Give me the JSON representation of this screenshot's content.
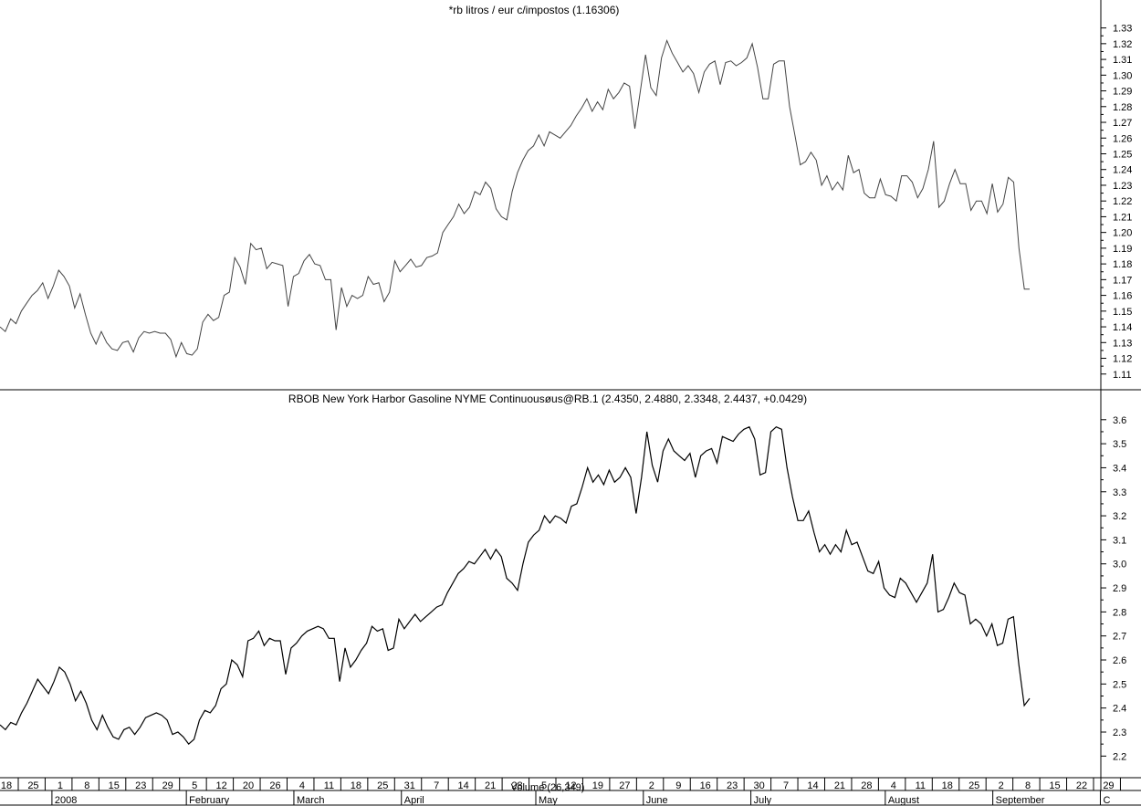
{
  "chart_data": [
    {
      "type": "line",
      "title": "*rb litros / eur c/impostos (1.16306)",
      "xlabel": "",
      "ylabel": "",
      "ylim": [
        1.1,
        1.335
      ],
      "yticks": [
        1.11,
        1.12,
        1.13,
        1.14,
        1.15,
        1.16,
        1.17,
        1.18,
        1.19,
        1.2,
        1.21,
        1.22,
        1.23,
        1.24,
        1.25,
        1.26,
        1.27,
        1.28,
        1.29,
        1.3,
        1.31,
        1.32,
        1.33
      ],
      "ytick_labels": [
        "1.11",
        "1.12",
        "1.13",
        "1.14",
        "1.15",
        "1.16",
        "1.17",
        "1.18",
        "1.19",
        "1.20",
        "1.21",
        "1.22",
        "1.23",
        "1.24",
        "1.25",
        "1.26",
        "1.27",
        "1.28",
        "1.29",
        "1.30",
        "1.31",
        "1.32",
        "1.33"
      ],
      "series": [
        {
          "color": "#444444",
          "values": [
            1.14,
            1.137,
            1.145,
            1.142,
            1.15,
            1.155,
            1.16,
            1.163,
            1.168,
            1.158,
            1.166,
            1.176,
            1.172,
            1.166,
            1.152,
            1.161,
            1.148,
            1.136,
            1.129,
            1.137,
            1.13,
            1.126,
            1.125,
            1.13,
            1.131,
            1.124,
            1.133,
            1.137,
            1.136,
            1.137,
            1.136,
            1.136,
            1.132,
            1.121,
            1.13,
            1.123,
            1.122,
            1.126,
            1.143,
            1.148,
            1.144,
            1.146,
            1.16,
            1.162,
            1.184,
            1.178,
            1.167,
            1.193,
            1.189,
            1.19,
            1.177,
            1.181,
            1.18,
            1.179,
            1.153,
            1.172,
            1.174,
            1.182,
            1.186,
            1.18,
            1.179,
            1.17,
            1.17,
            1.138,
            1.165,
            1.153,
            1.16,
            1.158,
            1.16,
            1.172,
            1.167,
            1.168,
            1.156,
            1.162,
            1.182,
            1.175,
            1.179,
            1.183,
            1.178,
            1.179,
            1.184,
            1.185,
            1.187,
            1.2,
            1.205,
            1.21,
            1.218,
            1.212,
            1.216,
            1.226,
            1.224,
            1.232,
            1.228,
            1.215,
            1.21,
            1.208,
            1.226,
            1.238,
            1.246,
            1.252,
            1.255,
            1.262,
            1.255,
            1.264,
            1.262,
            1.26,
            1.264,
            1.268,
            1.274,
            1.279,
            1.285,
            1.277,
            1.283,
            1.278,
            1.291,
            1.285,
            1.289,
            1.295,
            1.293,
            1.266,
            1.289,
            1.313,
            1.292,
            1.287,
            1.311,
            1.322,
            1.314,
            1.308,
            1.302,
            1.306,
            1.301,
            1.289,
            1.302,
            1.307,
            1.309,
            1.294,
            1.308,
            1.309,
            1.306,
            1.308,
            1.311,
            1.32,
            1.305,
            1.285,
            1.285,
            1.307,
            1.309,
            1.309,
            1.28,
            1.262,
            1.243,
            1.245,
            1.251,
            1.246,
            1.23,
            1.236,
            1.227,
            1.232,
            1.227,
            1.249,
            1.238,
            1.24,
            1.225,
            1.222,
            1.222,
            1.234,
            1.224,
            1.223,
            1.22,
            1.236,
            1.236,
            1.232,
            1.222,
            1.228,
            1.24,
            1.258,
            1.216,
            1.22,
            1.231,
            1.24,
            1.231,
            1.231,
            1.214,
            1.22,
            1.22,
            1.212,
            1.231,
            1.213,
            1.218,
            1.235,
            1.232,
            1.19,
            1.164,
            1.164
          ]
        }
      ]
    },
    {
      "type": "line",
      "title": "RBOB New York Harbor Gasoline NYME Continuousøus@RB.1 (2.4350, 2.4880, 2.3348, 2.4437, +0.0429)",
      "xlabel": "",
      "ylabel": "",
      "ylim": [
        2.11,
        3.66
      ],
      "yticks": [
        2.2,
        2.3,
        2.4,
        2.5,
        2.6,
        2.7,
        2.8,
        2.9,
        3.0,
        3.1,
        3.2,
        3.3,
        3.4,
        3.5,
        3.6
      ],
      "ytick_labels": [
        "2.2",
        "2.3",
        "2.4",
        "2.5",
        "2.6",
        "2.7",
        "2.8",
        "2.9",
        "3.0",
        "3.1",
        "3.2",
        "3.3",
        "3.4",
        "3.5",
        "3.6"
      ],
      "series": [
        {
          "color": "#000000",
          "values": [
            2.33,
            2.31,
            2.34,
            2.33,
            2.38,
            2.42,
            2.47,
            2.52,
            2.49,
            2.46,
            2.51,
            2.57,
            2.55,
            2.5,
            2.43,
            2.47,
            2.42,
            2.35,
            2.31,
            2.37,
            2.32,
            2.28,
            2.27,
            2.31,
            2.32,
            2.29,
            2.32,
            2.36,
            2.37,
            2.38,
            2.37,
            2.35,
            2.29,
            2.3,
            2.28,
            2.25,
            2.27,
            2.35,
            2.39,
            2.38,
            2.41,
            2.48,
            2.5,
            2.6,
            2.58,
            2.53,
            2.68,
            2.69,
            2.72,
            2.66,
            2.69,
            2.68,
            2.68,
            2.54,
            2.65,
            2.67,
            2.7,
            2.72,
            2.73,
            2.74,
            2.73,
            2.69,
            2.69,
            2.51,
            2.65,
            2.57,
            2.6,
            2.64,
            2.67,
            2.74,
            2.72,
            2.73,
            2.64,
            2.65,
            2.77,
            2.73,
            2.76,
            2.79,
            2.76,
            2.78,
            2.8,
            2.82,
            2.83,
            2.88,
            2.92,
            2.96,
            2.98,
            3.01,
            3.0,
            3.03,
            3.06,
            3.02,
            3.06,
            3.03,
            2.94,
            2.92,
            2.89,
            3.0,
            3.09,
            3.12,
            3.14,
            3.2,
            3.17,
            3.2,
            3.19,
            3.17,
            3.24,
            3.25,
            3.32,
            3.4,
            3.34,
            3.37,
            3.33,
            3.39,
            3.34,
            3.36,
            3.4,
            3.36,
            3.21,
            3.36,
            3.55,
            3.41,
            3.34,
            3.47,
            3.52,
            3.47,
            3.45,
            3.43,
            3.46,
            3.36,
            3.45,
            3.47,
            3.48,
            3.42,
            3.53,
            3.52,
            3.51,
            3.54,
            3.56,
            3.57,
            3.52,
            3.37,
            3.38,
            3.55,
            3.57,
            3.56,
            3.4,
            3.28,
            3.18,
            3.18,
            3.22,
            3.13,
            3.05,
            3.08,
            3.04,
            3.08,
            3.05,
            3.14,
            3.08,
            3.09,
            3.03,
            2.97,
            2.96,
            3.01,
            2.9,
            2.87,
            2.86,
            2.94,
            2.92,
            2.88,
            2.84,
            2.88,
            2.92,
            3.04,
            2.8,
            2.81,
            2.86,
            2.92,
            2.88,
            2.87,
            2.75,
            2.77,
            2.75,
            2.7,
            2.75,
            2.66,
            2.67,
            2.77,
            2.78,
            2.58,
            2.41,
            2.44
          ]
        }
      ]
    }
  ],
  "x_axis": {
    "day_ticks": [
      "18",
      "25",
      "1",
      "8",
      "15",
      "23",
      "29",
      "5",
      "12",
      "20",
      "26",
      "4",
      "11",
      "18",
      "25",
      "31",
      "7",
      "14",
      "21",
      "28",
      "5",
      "12",
      "19",
      "27",
      "2",
      "9",
      "16",
      "23",
      "30",
      "7",
      "14",
      "21",
      "28",
      "4",
      "11",
      "18",
      "25",
      "2",
      "8",
      "15",
      "22",
      "29"
    ],
    "months": [
      "2008",
      "February",
      "March",
      "April",
      "May",
      "June",
      "July",
      "August",
      "September",
      "C"
    ]
  },
  "volume_label": "Volume (26,349)"
}
